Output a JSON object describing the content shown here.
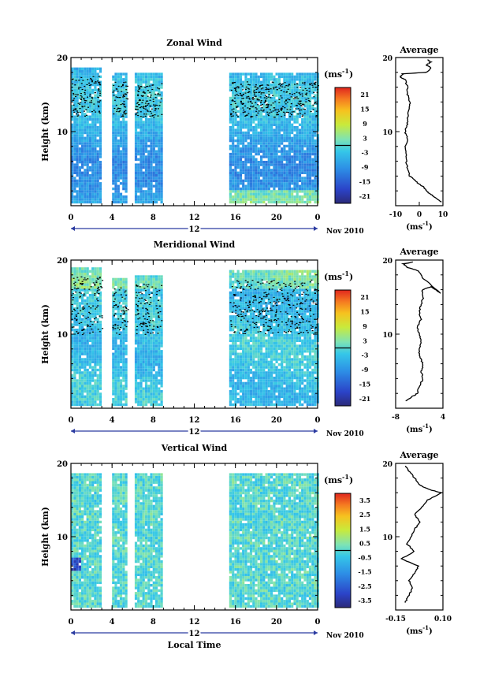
{
  "chart_data": [
    {
      "type": "heatmap",
      "title": "Zonal Wind",
      "ylabel": "Height (km)",
      "ylim": [
        0,
        20
      ],
      "yticks": [
        "20",
        "10"
      ],
      "xlim": [
        0,
        24
      ],
      "xticks": [
        "0",
        "4",
        "8",
        "12",
        "16",
        "20",
        "0"
      ],
      "date_label": "12",
      "month_label": "Nov 2010",
      "colorbar": {
        "unit": "(ms",
        "unit_exp": "-1",
        "unit_close": ")",
        "labels": [
          "21",
          "15",
          "9",
          "3",
          "-3",
          "-9",
          "-15",
          "-21"
        ],
        "range": [
          -24,
          24
        ]
      },
      "data_windows_local_time": [
        [
          0,
          2.8
        ],
        [
          4,
          5.5
        ],
        [
          6.2,
          8.8
        ],
        [
          15.4,
          24
        ]
      ],
      "data_top_km": [
        18.6,
        17.8,
        17.6,
        17.8
      ],
      "profile": {
        "title": "Average",
        "xticks": [
          "-10",
          "0",
          "10"
        ],
        "xlim": [
          -10,
          10
        ],
        "xlabel": "(ms",
        "xlabel_exp": "-1",
        "xlabel_close": ")",
        "yticks": [
          "20",
          "10"
        ],
        "points": [
          [
            9.5,
            0.5
          ],
          [
            7,
            1
          ],
          [
            5,
            1.5
          ],
          [
            3,
            2
          ],
          [
            2,
            2.5
          ],
          [
            -0.5,
            3
          ],
          [
            -2,
            3.5
          ],
          [
            -4,
            4
          ],
          [
            -5,
            5
          ],
          [
            -5.5,
            6
          ],
          [
            -5.5,
            7
          ],
          [
            -6,
            8
          ],
          [
            -5,
            9
          ],
          [
            -6,
            10
          ],
          [
            -5,
            11
          ],
          [
            -5,
            12
          ],
          [
            -4.5,
            13
          ],
          [
            -4,
            14
          ],
          [
            -5,
            15
          ],
          [
            -5,
            16
          ],
          [
            -6,
            17
          ],
          [
            -8,
            17.4
          ],
          [
            -7,
            17.8
          ],
          [
            3,
            18
          ],
          [
            5,
            18.6
          ],
          [
            3,
            19
          ],
          [
            5,
            19.4
          ],
          [
            3,
            19.8
          ]
        ]
      }
    },
    {
      "type": "heatmap",
      "title": "Meridional Wind",
      "ylabel": "Height (km)",
      "ylim": [
        0,
        20
      ],
      "yticks": [
        "20",
        "10"
      ],
      "xlim": [
        0,
        24
      ],
      "xticks": [
        "0",
        "4",
        "8",
        "12",
        "16",
        "20",
        "0"
      ],
      "date_label": "12",
      "month_label": "Nov 2010",
      "colorbar": {
        "unit": "(ms",
        "unit_exp": "-1",
        "unit_close": ")",
        "labels": [
          "21",
          "15",
          "9",
          "3",
          "-3",
          "-9",
          "-15",
          "-21"
        ],
        "range": [
          -24,
          24
        ]
      },
      "data_windows_local_time": [
        [
          0,
          3
        ],
        [
          4,
          5.5
        ],
        [
          6.2,
          8.8
        ],
        [
          15.4,
          24
        ]
      ],
      "data_top_km": [
        18.8,
        17.4,
        17.8,
        18.4
      ],
      "profile": {
        "title": "Average",
        "xticks": [
          "-8",
          "4"
        ],
        "xlim": [
          -8,
          4
        ],
        "xlabel": "(ms",
        "xlabel_exp": "-1",
        "xlabel_close": ")",
        "yticks": [
          "20",
          "10"
        ],
        "points": [
          [
            -5.5,
            1
          ],
          [
            -4,
            1.5
          ],
          [
            -2.5,
            2
          ],
          [
            -2,
            3
          ],
          [
            -1,
            4
          ],
          [
            -1.5,
            5
          ],
          [
            -1,
            6
          ],
          [
            -2,
            7
          ],
          [
            -2,
            8
          ],
          [
            -1.5,
            9
          ],
          [
            -2,
            10
          ],
          [
            -2.5,
            11
          ],
          [
            -1.5,
            12
          ],
          [
            -2,
            13
          ],
          [
            -1.5,
            14
          ],
          [
            -1,
            15
          ],
          [
            -1.2,
            16
          ],
          [
            1,
            16.4
          ],
          [
            3.5,
            15.5
          ],
          [
            -1,
            17.5
          ],
          [
            -2,
            18.5
          ],
          [
            -5,
            19
          ],
          [
            -6,
            19.5
          ],
          [
            -3,
            19.8
          ]
        ]
      }
    },
    {
      "type": "heatmap",
      "title": "Vertical Wind",
      "ylabel": "Height (km)",
      "xlabel": "Local Time",
      "ylim": [
        0,
        20
      ],
      "yticks": [
        "20",
        "10"
      ],
      "xlim": [
        0,
        24
      ],
      "xticks": [
        "0",
        "4",
        "8",
        "12",
        "16",
        "20",
        "0"
      ],
      "date_label": "12",
      "month_label": "Nov 2010",
      "colorbar": {
        "unit": "(ms",
        "unit_exp": "-1",
        "unit_close": ")",
        "labels": [
          "3.5",
          "2.5",
          "1.5",
          "0.5",
          "-0.5",
          "-1.5",
          "-2.5",
          "-3.5"
        ],
        "range": [
          -4,
          4
        ]
      },
      "data_windows_local_time": [
        [
          0,
          3
        ],
        [
          4,
          5.5
        ],
        [
          6.2,
          8.8
        ],
        [
          15.4,
          24
        ]
      ],
      "data_top_km": [
        18.4,
        18.4,
        18.4,
        18.4
      ],
      "profile": {
        "title": "Average",
        "xticks": [
          "-0.15",
          "0.10"
        ],
        "xlim": [
          -0.15,
          0.1
        ],
        "xlabel": "(ms",
        "xlabel_exp": "-1",
        "xlabel_close": ")",
        "yticks": [
          "20",
          "10"
        ],
        "points": [
          [
            -0.1,
            1
          ],
          [
            -0.08,
            2
          ],
          [
            -0.06,
            3
          ],
          [
            -0.08,
            4
          ],
          [
            -0.05,
            5
          ],
          [
            -0.03,
            6
          ],
          [
            -0.12,
            7
          ],
          [
            -0.05,
            8
          ],
          [
            -0.09,
            9
          ],
          [
            -0.07,
            10
          ],
          [
            -0.05,
            11
          ],
          [
            -0.02,
            12
          ],
          [
            -0.05,
            13
          ],
          [
            -0.01,
            14
          ],
          [
            0.02,
            15
          ],
          [
            0.09,
            16
          ],
          [
            0.02,
            16.5
          ],
          [
            -0.02,
            17
          ],
          [
            -0.05,
            18
          ],
          [
            -0.08,
            19
          ],
          [
            -0.1,
            19.8
          ]
        ]
      }
    }
  ]
}
